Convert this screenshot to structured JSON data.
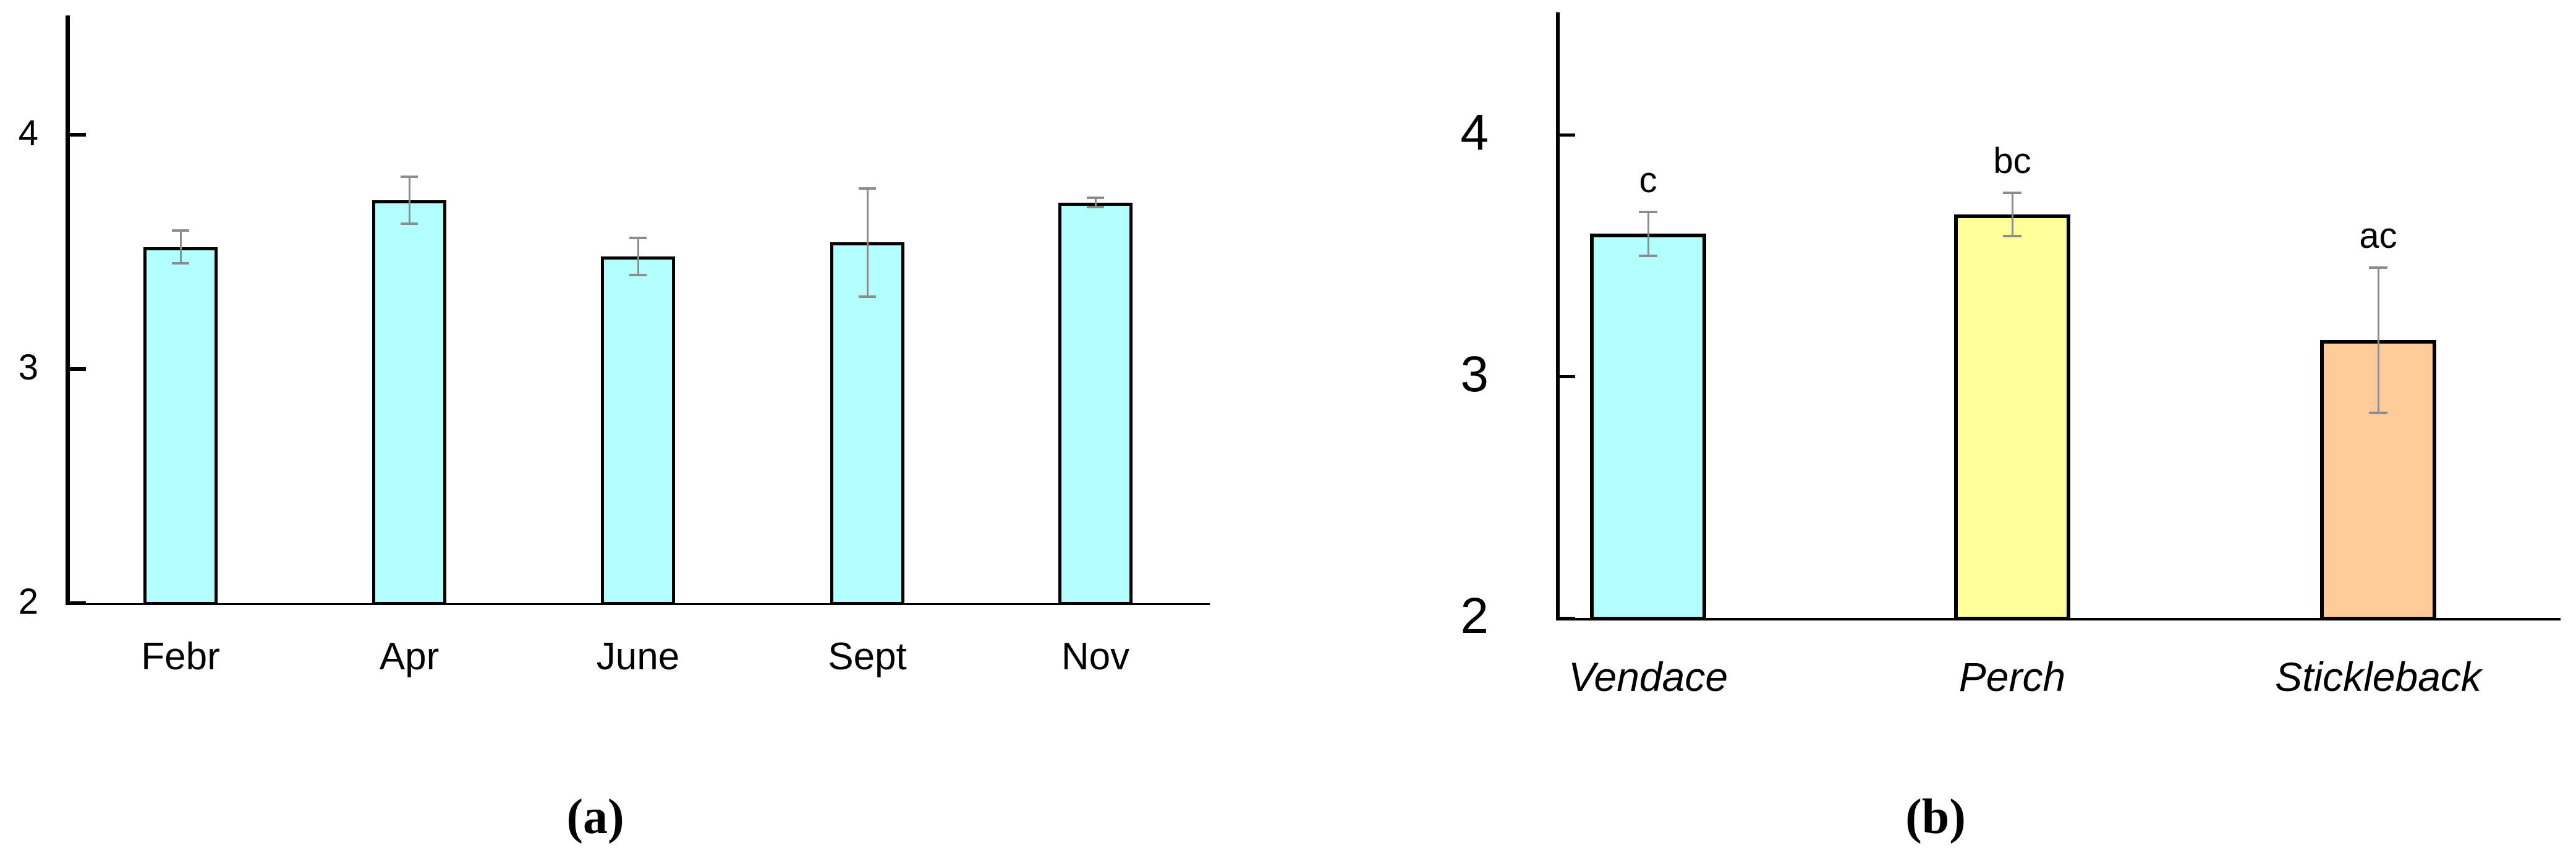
{
  "figure": {
    "description": "Two-panel bar chart figure with error bars",
    "error_bar_color": "#8C8C8C",
    "axis_color": "#000000",
    "background": "#FFFFFF"
  },
  "chart_data": [
    {
      "id": "a",
      "type": "bar",
      "caption": "(a)",
      "title": "",
      "xlabel": "",
      "ylabel": "",
      "categories": [
        "Febr",
        "Apr",
        "June",
        "Sept",
        "Nov"
      ],
      "values": [
        3.52,
        3.72,
        3.48,
        3.54,
        3.71
      ],
      "errors": [
        0.07,
        0.1,
        0.08,
        0.23,
        0.02
      ],
      "sig_letters": [
        "",
        "",
        "",
        "",
        ""
      ],
      "bar_colors": [
        "#B3FFFF",
        "#B3FFFF",
        "#B3FFFF",
        "#B3FFFF",
        "#B3FFFF"
      ],
      "yticks": [
        2,
        3,
        4
      ],
      "ylim": [
        2,
        4.5
      ],
      "grid": false,
      "legend": "none",
      "categories_italic": false
    },
    {
      "id": "b",
      "type": "bar",
      "caption": "(b)",
      "title": "",
      "xlabel": "",
      "ylabel": "",
      "categories": [
        "Vendace",
        "Perch",
        "Stickleback"
      ],
      "values": [
        3.59,
        3.67,
        3.15
      ],
      "errors": [
        0.09,
        0.09,
        0.3
      ],
      "sig_letters": [
        "c",
        "bc",
        "ac"
      ],
      "bar_colors": [
        "#B3FFFF",
        "#FFFF99",
        "#FFCC99"
      ],
      "yticks": [
        2,
        3,
        4
      ],
      "ylim": [
        2,
        4.5
      ],
      "grid": false,
      "legend": "none",
      "categories_italic": true
    }
  ]
}
